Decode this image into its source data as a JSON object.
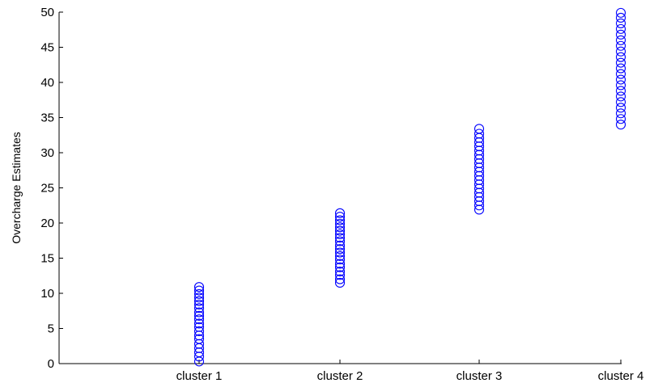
{
  "chart_data": {
    "type": "scatter",
    "title": "",
    "xlabel": "",
    "ylabel": "Overcharge Estimates",
    "categories": [
      "cluster 1",
      "cluster 2",
      "cluster 3",
      "cluster 4"
    ],
    "ylim": [
      0,
      50
    ],
    "yticks": [
      0,
      5,
      10,
      15,
      20,
      25,
      30,
      35,
      40,
      45,
      50
    ],
    "grid": false,
    "marker": "circle",
    "series": [
      {
        "color": "#0000ff",
        "points": [
          {
            "x": "cluster 1",
            "y": 0.3
          },
          {
            "x": "cluster 1",
            "y": 1.0
          },
          {
            "x": "cluster 1",
            "y": 1.6
          },
          {
            "x": "cluster 1",
            "y": 2.2
          },
          {
            "x": "cluster 1",
            "y": 2.8
          },
          {
            "x": "cluster 1",
            "y": 3.5
          },
          {
            "x": "cluster 1",
            "y": 4.0
          },
          {
            "x": "cluster 1",
            "y": 4.6
          },
          {
            "x": "cluster 1",
            "y": 5.2
          },
          {
            "x": "cluster 1",
            "y": 5.7
          },
          {
            "x": "cluster 1",
            "y": 6.3
          },
          {
            "x": "cluster 1",
            "y": 6.8
          },
          {
            "x": "cluster 1",
            "y": 7.3
          },
          {
            "x": "cluster 1",
            "y": 7.9
          },
          {
            "x": "cluster 1",
            "y": 8.4
          },
          {
            "x": "cluster 1",
            "y": 8.9
          },
          {
            "x": "cluster 1",
            "y": 9.4
          },
          {
            "x": "cluster 1",
            "y": 9.9
          },
          {
            "x": "cluster 1",
            "y": 10.4
          },
          {
            "x": "cluster 1",
            "y": 10.9
          },
          {
            "x": "cluster 2",
            "y": 11.5
          },
          {
            "x": "cluster 2",
            "y": 12.0
          },
          {
            "x": "cluster 2",
            "y": 12.6
          },
          {
            "x": "cluster 2",
            "y": 13.1
          },
          {
            "x": "cluster 2",
            "y": 13.7
          },
          {
            "x": "cluster 2",
            "y": 14.2
          },
          {
            "x": "cluster 2",
            "y": 14.8
          },
          {
            "x": "cluster 2",
            "y": 15.3
          },
          {
            "x": "cluster 2",
            "y": 15.8
          },
          {
            "x": "cluster 2",
            "y": 16.3
          },
          {
            "x": "cluster 2",
            "y": 16.8
          },
          {
            "x": "cluster 2",
            "y": 17.4
          },
          {
            "x": "cluster 2",
            "y": 17.9
          },
          {
            "x": "cluster 2",
            "y": 18.4
          },
          {
            "x": "cluster 2",
            "y": 18.9
          },
          {
            "x": "cluster 2",
            "y": 19.4
          },
          {
            "x": "cluster 2",
            "y": 19.9
          },
          {
            "x": "cluster 2",
            "y": 20.4
          },
          {
            "x": "cluster 2",
            "y": 20.9
          },
          {
            "x": "cluster 2",
            "y": 21.4
          },
          {
            "x": "cluster 3",
            "y": 21.9
          },
          {
            "x": "cluster 3",
            "y": 22.5
          },
          {
            "x": "cluster 3",
            "y": 23.1
          },
          {
            "x": "cluster 3",
            "y": 23.7
          },
          {
            "x": "cluster 3",
            "y": 24.3
          },
          {
            "x": "cluster 3",
            "y": 24.9
          },
          {
            "x": "cluster 3",
            "y": 25.5
          },
          {
            "x": "cluster 3",
            "y": 26.1
          },
          {
            "x": "cluster 3",
            "y": 26.7
          },
          {
            "x": "cluster 3",
            "y": 27.3
          },
          {
            "x": "cluster 3",
            "y": 27.9
          },
          {
            "x": "cluster 3",
            "y": 28.5
          },
          {
            "x": "cluster 3",
            "y": 29.1
          },
          {
            "x": "cluster 3",
            "y": 29.7
          },
          {
            "x": "cluster 3",
            "y": 30.3
          },
          {
            "x": "cluster 3",
            "y": 30.9
          },
          {
            "x": "cluster 3",
            "y": 31.5
          },
          {
            "x": "cluster 3",
            "y": 32.1
          },
          {
            "x": "cluster 3",
            "y": 32.7
          },
          {
            "x": "cluster 3",
            "y": 33.4
          },
          {
            "x": "cluster 4",
            "y": 34.0
          },
          {
            "x": "cluster 4",
            "y": 34.8
          },
          {
            "x": "cluster 4",
            "y": 35.6
          },
          {
            "x": "cluster 4",
            "y": 36.4
          },
          {
            "x": "cluster 4",
            "y": 37.2
          },
          {
            "x": "cluster 4",
            "y": 38.0
          },
          {
            "x": "cluster 4",
            "y": 38.8
          },
          {
            "x": "cluster 4",
            "y": 39.6
          },
          {
            "x": "cluster 4",
            "y": 40.4
          },
          {
            "x": "cluster 4",
            "y": 41.2
          },
          {
            "x": "cluster 4",
            "y": 42.0
          },
          {
            "x": "cluster 4",
            "y": 42.8
          },
          {
            "x": "cluster 4",
            "y": 43.6
          },
          {
            "x": "cluster 4",
            "y": 44.4
          },
          {
            "x": "cluster 4",
            "y": 45.2
          },
          {
            "x": "cluster 4",
            "y": 46.0
          },
          {
            "x": "cluster 4",
            "y": 46.8
          },
          {
            "x": "cluster 4",
            "y": 47.6
          },
          {
            "x": "cluster 4",
            "y": 48.4
          },
          {
            "x": "cluster 4",
            "y": 49.2
          },
          {
            "x": "cluster 4",
            "y": 49.9
          }
        ]
      }
    ]
  }
}
